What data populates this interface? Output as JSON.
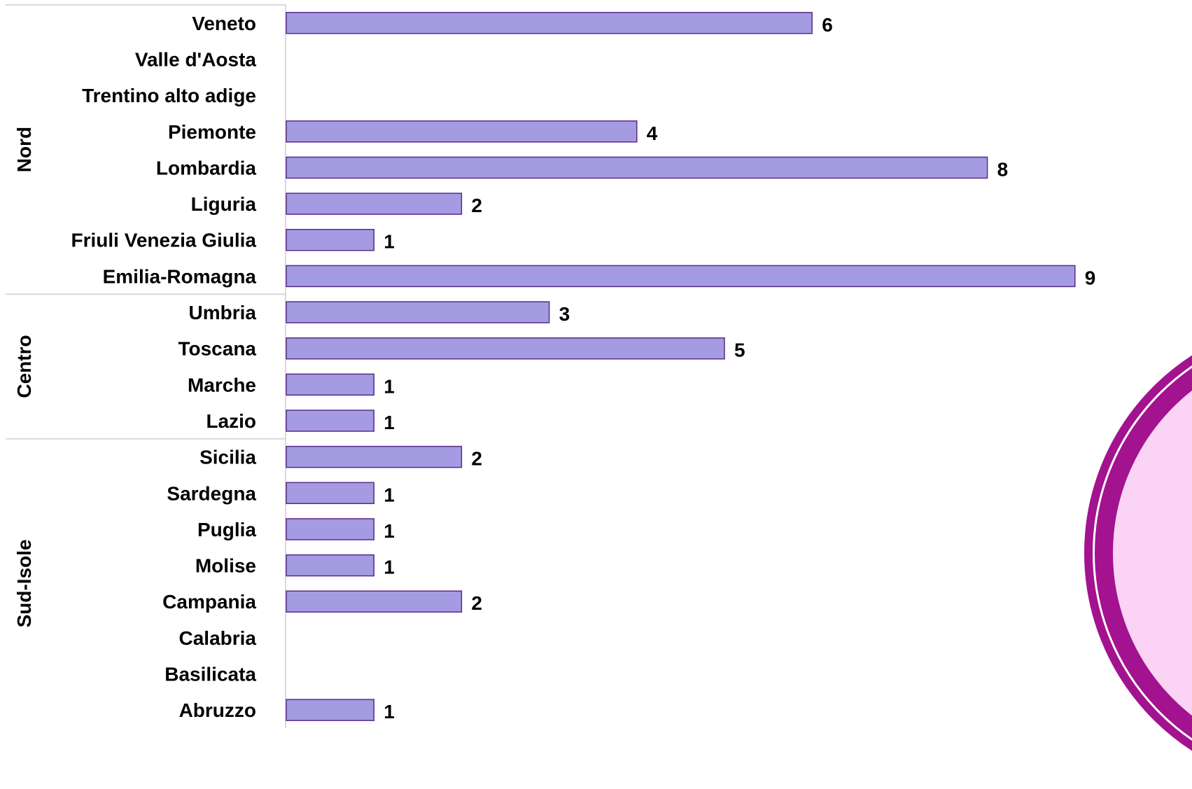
{
  "chart_data": {
    "type": "bar",
    "orientation": "horizontal",
    "grouped_axis": true,
    "groups": [
      {
        "name": "Nord",
        "categories": [
          "Veneto",
          "Valle d'Aosta",
          "Trentino alto adige",
          "Piemonte",
          "Lombardia",
          "Liguria",
          "Friuli Venezia Giulia",
          "Emilia-Romagna"
        ],
        "values": [
          6,
          null,
          null,
          4,
          8,
          2,
          1,
          9
        ]
      },
      {
        "name": "Centro",
        "categories": [
          "Umbria",
          "Toscana",
          "Marche",
          "Lazio"
        ],
        "values": [
          3,
          5,
          1,
          1
        ]
      },
      {
        "name": "Sud-Isole",
        "categories": [
          "Sicilia",
          "Sardegna",
          "Puglia",
          "Molise",
          "Campania",
          "Calabria",
          "Basilicata",
          "Abruzzo"
        ],
        "values": [
          2,
          1,
          1,
          1,
          2,
          null,
          null,
          1
        ]
      }
    ],
    "xlim": [
      0,
      9
    ],
    "title": "",
    "xlabel": "",
    "ylabel": "",
    "data_labels": true,
    "grid": false,
    "legend": "none",
    "colors": {
      "bar_fill": "#a49be3",
      "bar_stroke": "#5a2a8a",
      "separator": "#d9d9d9",
      "badge_ring": "#a3128f",
      "badge_fill": "#fbd3f4"
    }
  }
}
